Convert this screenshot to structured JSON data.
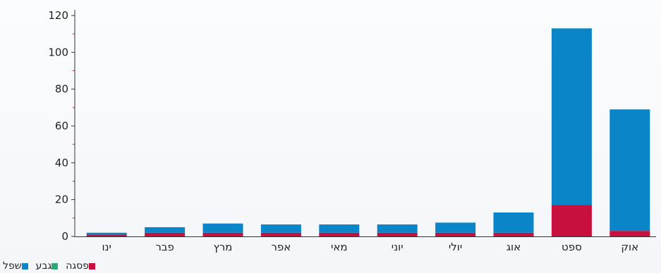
{
  "chart_data": {
    "type": "bar",
    "stacked": true,
    "categories": [
      "ינו",
      "פבר",
      "מרץ",
      "אפר",
      "מאי",
      "יוני",
      "יולי",
      "אוג",
      "ספט",
      "אוק"
    ],
    "series": [
      {
        "name": "פסגה",
        "color": "#c8103e",
        "values": [
          1,
          2,
          2,
          2,
          2,
          2,
          2,
          2,
          17,
          3
        ]
      },
      {
        "name": "גבע",
        "color": "#2aa876",
        "values": [
          0,
          0,
          0,
          0,
          0,
          0,
          0,
          0,
          0,
          0
        ]
      },
      {
        "name": "שפל",
        "color": "#0a86c8",
        "values": [
          1,
          3,
          5,
          4.5,
          4.5,
          4.5,
          5.5,
          11,
          96,
          66
        ]
      }
    ],
    "y_ticks": [
      0,
      20,
      40,
      60,
      80,
      100,
      120
    ],
    "ylim": [
      0,
      120
    ],
    "title": "",
    "xlabel": "",
    "ylabel": "",
    "grid": false,
    "legend_position": "bottom-left",
    "legend_order": [
      "שפל",
      "גבע",
      "פסגה"
    ]
  }
}
